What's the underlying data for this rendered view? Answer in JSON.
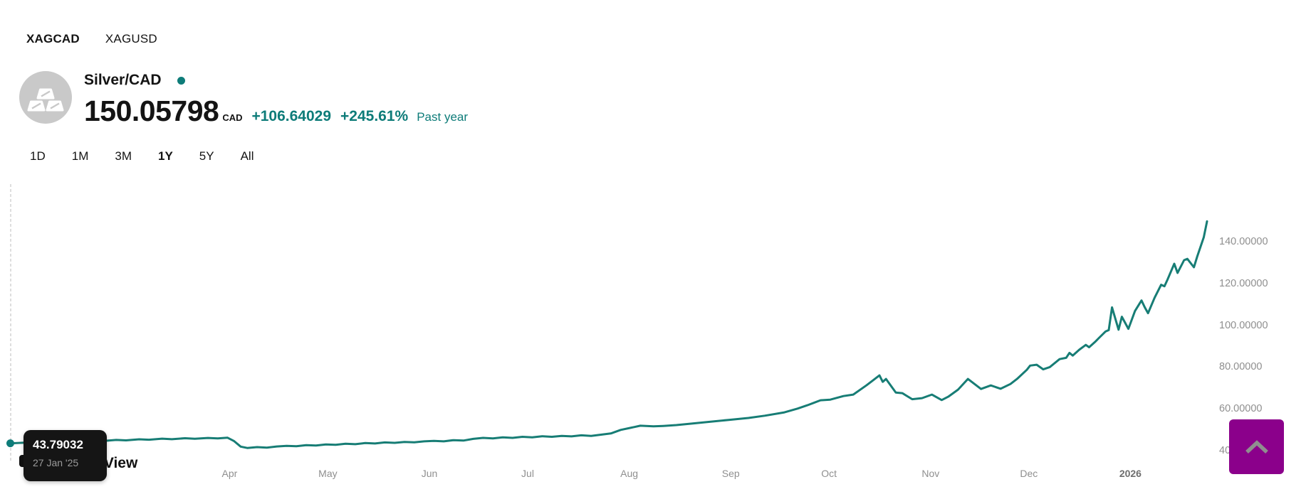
{
  "tabs": [
    {
      "label": "XAGCAD",
      "active": true
    },
    {
      "label": "XAGUSD",
      "active": false
    }
  ],
  "header": {
    "title": "Silver/CAD",
    "logo_icon": "silver-bars-icon",
    "price": "150.05798",
    "currency": "CAD",
    "change_abs": "+106.64029",
    "change_pct": "+245.61%",
    "period_label": "Past year"
  },
  "ranges": [
    {
      "label": "1D",
      "active": false
    },
    {
      "label": "1M",
      "active": false
    },
    {
      "label": "3M",
      "active": false
    },
    {
      "label": "1Y",
      "active": true
    },
    {
      "label": "5Y",
      "active": false
    },
    {
      "label": "All",
      "active": false
    }
  ],
  "tooltip": {
    "value": "43.79032",
    "date": "27 Jan '25"
  },
  "watermark": {
    "text": "TradingView"
  },
  "scroll_top_button": {
    "icon": "chevron-up-icon"
  },
  "colors": {
    "accent_teal": "#0e7c79",
    "line_teal": "#177d75",
    "axis_gray": "#8f8f8f",
    "tooltip_bg": "#151515",
    "purple_button": "#8b008b",
    "chevron_gray": "#8f8f8f",
    "logo_gray": "#c9c9c9"
  },
  "chart_data": {
    "type": "line",
    "title": "Silver/CAD past year",
    "series_name": "XAGCAD",
    "start_label": "27 Jan '25",
    "start_value": 43.79032,
    "end_value": 150.05798,
    "ylim": [
      40,
      150
    ],
    "grid": false,
    "legend": "none",
    "y_ticks": [
      {
        "label": "140.00000",
        "value": 140
      },
      {
        "label": "120.00000",
        "value": 120
      },
      {
        "label": "100.00000",
        "value": 100
      },
      {
        "label": "80.00000",
        "value": 80
      },
      {
        "label": "60.00000",
        "value": 60
      },
      {
        "label": "40.00000",
        "value": 40
      }
    ],
    "x_ticks": [
      {
        "label": "Apr",
        "day": 64,
        "year": false
      },
      {
        "label": "May",
        "day": 94,
        "year": false
      },
      {
        "label": "Jun",
        "day": 125,
        "year": false
      },
      {
        "label": "Jul",
        "day": 155,
        "year": false
      },
      {
        "label": "Aug",
        "day": 186,
        "year": false
      },
      {
        "label": "Sep",
        "day": 217,
        "year": false
      },
      {
        "label": "Oct",
        "day": 247,
        "year": false
      },
      {
        "label": "Nov",
        "day": 278,
        "year": false
      },
      {
        "label": "Dec",
        "day": 308,
        "year": false
      },
      {
        "label": "2026",
        "day": 339,
        "year": true
      }
    ],
    "points": [
      [
        0,
        43.79
      ],
      [
        4,
        44.1
      ],
      [
        7,
        43.85
      ],
      [
        11,
        44.5
      ],
      [
        14,
        44.25
      ],
      [
        18,
        44.8
      ],
      [
        21,
        44.6
      ],
      [
        25,
        45.15
      ],
      [
        28,
        44.9
      ],
      [
        32,
        45.4
      ],
      [
        35,
        45.2
      ],
      [
        39,
        45.7
      ],
      [
        42,
        45.5
      ],
      [
        46,
        46.0
      ],
      [
        49,
        45.75
      ],
      [
        53,
        46.2
      ],
      [
        56,
        45.95
      ],
      [
        60,
        46.35
      ],
      [
        63,
        46.1
      ],
      [
        66,
        46.45
      ],
      [
        68,
        44.8
      ],
      [
        70,
        42.2
      ],
      [
        72,
        41.55
      ],
      [
        75,
        41.95
      ],
      [
        78,
        41.7
      ],
      [
        81,
        42.25
      ],
      [
        84,
        42.55
      ],
      [
        87,
        42.35
      ],
      [
        90,
        42.9
      ],
      [
        93,
        42.7
      ],
      [
        96,
        43.25
      ],
      [
        99,
        43.05
      ],
      [
        102,
        43.55
      ],
      [
        105,
        43.35
      ],
      [
        108,
        43.9
      ],
      [
        111,
        43.7
      ],
      [
        114,
        44.2
      ],
      [
        117,
        44.0
      ],
      [
        120,
        44.45
      ],
      [
        123,
        44.25
      ],
      [
        126,
        44.7
      ],
      [
        129,
        44.95
      ],
      [
        132,
        44.7
      ],
      [
        135,
        45.3
      ],
      [
        138,
        45.1
      ],
      [
        141,
        45.9
      ],
      [
        144,
        46.4
      ],
      [
        147,
        46.15
      ],
      [
        150,
        46.65
      ],
      [
        153,
        46.4
      ],
      [
        156,
        46.9
      ],
      [
        159,
        46.65
      ],
      [
        162,
        47.15
      ],
      [
        165,
        46.9
      ],
      [
        168,
        47.35
      ],
      [
        171,
        47.1
      ],
      [
        174,
        47.6
      ],
      [
        177,
        47.35
      ],
      [
        180,
        47.9
      ],
      [
        183,
        48.5
      ],
      [
        186,
        50.2
      ],
      [
        189,
        51.2
      ],
      [
        192,
        52.2
      ],
      [
        196,
        51.9
      ],
      [
        199,
        52.1
      ],
      [
        203,
        52.5
      ],
      [
        208,
        53.3
      ],
      [
        214,
        54.2
      ],
      [
        219,
        55.0
      ],
      [
        225,
        55.9
      ],
      [
        230,
        57.0
      ],
      [
        236,
        58.6
      ],
      [
        240,
        60.4
      ],
      [
        243,
        62.0
      ],
      [
        247,
        64.4
      ],
      [
        250,
        64.7
      ],
      [
        254,
        66.4
      ],
      [
        257,
        67.1
      ],
      [
        261,
        71.5
      ],
      [
        263,
        73.9
      ],
      [
        265,
        76.3
      ],
      [
        266,
        73.2
      ],
      [
        267,
        74.6
      ],
      [
        270,
        68.1
      ],
      [
        272,
        67.8
      ],
      [
        275,
        64.9
      ],
      [
        278,
        65.4
      ],
      [
        281,
        67.1
      ],
      [
        284,
        64.5
      ],
      [
        286,
        66.1
      ],
      [
        289,
        69.5
      ],
      [
        292,
        74.6
      ],
      [
        296,
        69.8
      ],
      [
        299,
        71.5
      ],
      [
        302,
        69.9
      ],
      [
        305,
        72.2
      ],
      [
        307,
        74.6
      ],
      [
        310,
        79.0
      ],
      [
        311,
        81.0
      ],
      [
        313,
        81.4
      ],
      [
        315,
        79.2
      ],
      [
        317,
        80.3
      ],
      [
        320,
        84.1
      ],
      [
        322,
        84.7
      ],
      [
        323,
        87.1
      ],
      [
        324,
        85.8
      ],
      [
        326,
        88.6
      ],
      [
        328,
        90.9
      ],
      [
        329,
        89.8
      ],
      [
        331,
        92.6
      ],
      [
        332,
        94.2
      ],
      [
        334,
        97.3
      ],
      [
        335,
        98.0
      ],
      [
        336,
        108.9
      ],
      [
        338,
        98.2
      ],
      [
        339,
        104.4
      ],
      [
        341,
        98.6
      ],
      [
        343,
        107.1
      ],
      [
        345,
        112.2
      ],
      [
        346,
        108.9
      ],
      [
        347,
        106.1
      ],
      [
        349,
        113.5
      ],
      [
        351,
        119.7
      ],
      [
        352,
        119.0
      ],
      [
        353,
        122.4
      ],
      [
        355,
        129.8
      ],
      [
        356,
        125.4
      ],
      [
        358,
        131.5
      ],
      [
        359,
        132.1
      ],
      [
        361,
        128.1
      ],
      [
        362,
        133.2
      ],
      [
        364,
        142.4
      ],
      [
        365,
        150.06
      ]
    ]
  }
}
